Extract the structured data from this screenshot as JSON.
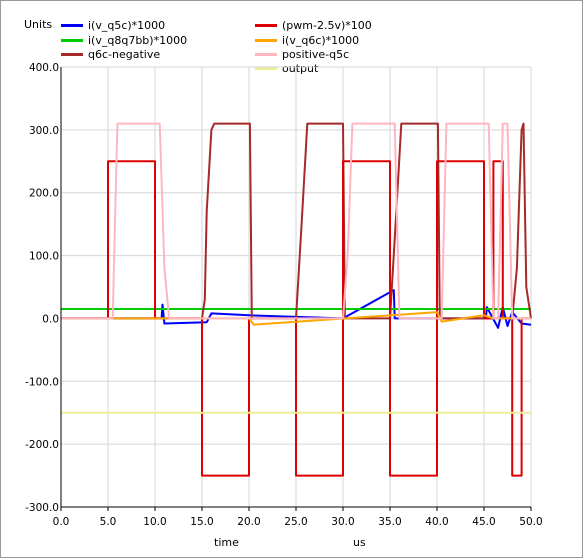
{
  "units_label": "Units",
  "chart_data": {
    "type": "line",
    "xlabel": "time",
    "xunit": "us",
    "xlim": [
      0,
      50
    ],
    "ylim": [
      -300,
      400
    ],
    "xticks": [
      "0.0",
      "5.0",
      "10.0",
      "15.0",
      "20.0",
      "25.0",
      "30.0",
      "35.0",
      "40.0",
      "45.0",
      "50.0"
    ],
    "yticks": [
      "400.0",
      "300.0",
      "200.0",
      "100.0",
      "0.0",
      "-100.0",
      "-200.0",
      "-300.0"
    ],
    "grid": true,
    "series": [
      {
        "name": "i(v_q5c)*1000",
        "color": "#0000ff",
        "x": [
          0,
          10.7,
          10.8,
          11,
          15.5,
          16,
          20,
          30,
          35.4,
          35.5,
          35.6,
          45.2,
          45.3,
          46.5,
          47,
          47.5,
          48,
          49,
          50
        ],
        "y": [
          0,
          0,
          22,
          -8,
          -6,
          8,
          5,
          0,
          45,
          0,
          0,
          0,
          18,
          -15,
          18,
          -12,
          10,
          -8,
          -10
        ]
      },
      {
        "name": "i(v_q8q7bb)*1000",
        "color": "#00cc00",
        "x": [
          0,
          50
        ],
        "y": [
          15,
          15
        ]
      },
      {
        "name": "q6c-negative",
        "color": "#a52a2a",
        "x": [
          0,
          15,
          15.3,
          15.5,
          16,
          16.3,
          20.1,
          20.3,
          25,
          25.6,
          26.2,
          30,
          30.2,
          35,
          35.6,
          36.2,
          40.1,
          40.3,
          48,
          48.5,
          48.7,
          49,
          49.2,
          49.5,
          50
        ],
        "y": [
          0,
          0,
          30,
          170,
          300,
          310,
          310,
          0,
          0,
          150,
          310,
          310,
          0,
          0,
          150,
          310,
          310,
          0,
          0,
          80,
          170,
          300,
          310,
          50,
          0
        ]
      },
      {
        "name": "(pwm-2.5v)*100",
        "color": "#dd0000",
        "x": [
          0,
          5,
          5,
          10,
          10,
          15,
          15,
          20,
          20,
          25,
          25,
          30,
          30,
          35,
          35,
          40,
          40,
          45,
          45,
          46,
          46,
          47,
          47,
          48,
          48,
          49,
          49,
          50
        ],
        "y": [
          0,
          0,
          250,
          250,
          0,
          0,
          -250,
          -250,
          0,
          0,
          -250,
          -250,
          250,
          250,
          -250,
          -250,
          250,
          250,
          0,
          0,
          250,
          250,
          0,
          0,
          -250,
          -250,
          0,
          0
        ]
      },
      {
        "name": "i(v_q6c)*1000",
        "color": "#ffa500",
        "x": [
          0,
          15,
          16,
          20,
          20.5,
          40,
          40.5,
          45,
          46,
          50
        ],
        "y": [
          0,
          0,
          0,
          0,
          -10,
          10,
          -5,
          5,
          0,
          0
        ]
      },
      {
        "name": "positive-q5c",
        "color": "#ffb6c1",
        "x": [
          0,
          5.5,
          6,
          10.5,
          11,
          11.5,
          30,
          30.5,
          31,
          35.5,
          36,
          40.5,
          41,
          45.5,
          46,
          46.5,
          47,
          47.5,
          48,
          48.3,
          50
        ],
        "y": [
          0,
          0,
          310,
          310,
          80,
          0,
          0,
          100,
          310,
          310,
          0,
          0,
          310,
          310,
          0,
          0,
          310,
          310,
          0,
          0,
          0
        ]
      },
      {
        "name": "output",
        "color": "#eeee99",
        "x": [
          0,
          50
        ],
        "y": [
          -150,
          -150
        ]
      }
    ]
  }
}
